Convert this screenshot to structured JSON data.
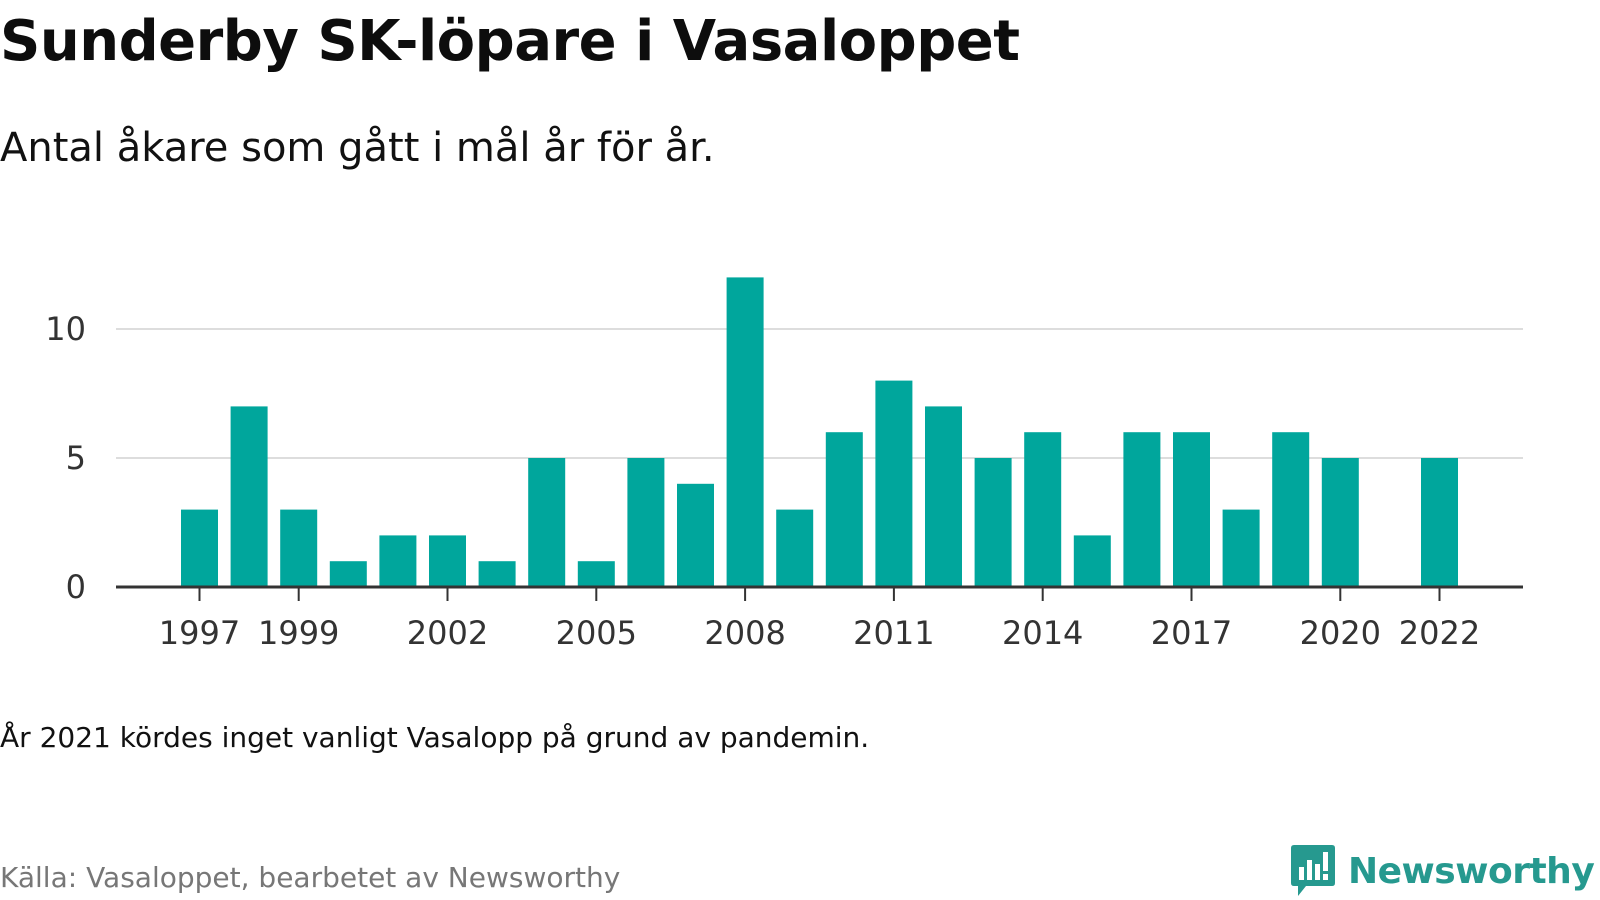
{
  "title": "Sunderby SK-löpare i Vasaloppet",
  "subtitle": "Antal åkare som gått i mål år för år.",
  "note": "År 2021 kördes inget vanligt Vasalopp på grund av pandemin.",
  "source": "Källa: Vasaloppet, bearbetet av Newsworthy",
  "brand": {
    "name": "Newsworthy",
    "icon": "newsworthy-logo-icon",
    "color": "#26998f"
  },
  "colors": {
    "bar": "#00a69c",
    "grid": "#dddddd",
    "axis": "#333333",
    "text": "#111111",
    "muted": "#777777"
  },
  "chart_data": {
    "type": "bar",
    "title": "",
    "xlabel": "",
    "ylabel": "",
    "ylim": [
      0,
      12
    ],
    "yticks": [
      0,
      5,
      10
    ],
    "xtick_labels": [
      "1997",
      "1999",
      "2002",
      "2005",
      "2008",
      "2011",
      "2014",
      "2017",
      "2020",
      "2022"
    ],
    "grid": true,
    "categories": [
      "1997",
      "1998",
      "1999",
      "2000",
      "2001",
      "2002",
      "2003",
      "2004",
      "2005",
      "2006",
      "2007",
      "2008",
      "2009",
      "2010",
      "2011",
      "2012",
      "2013",
      "2014",
      "2015",
      "2016",
      "2017",
      "2018",
      "2019",
      "2020",
      "2021",
      "2022"
    ],
    "values": [
      3,
      7,
      3,
      1,
      2,
      2,
      1,
      5,
      1,
      5,
      4,
      12,
      3,
      6,
      8,
      7,
      5,
      6,
      2,
      6,
      6,
      3,
      6,
      5,
      null,
      5
    ]
  }
}
